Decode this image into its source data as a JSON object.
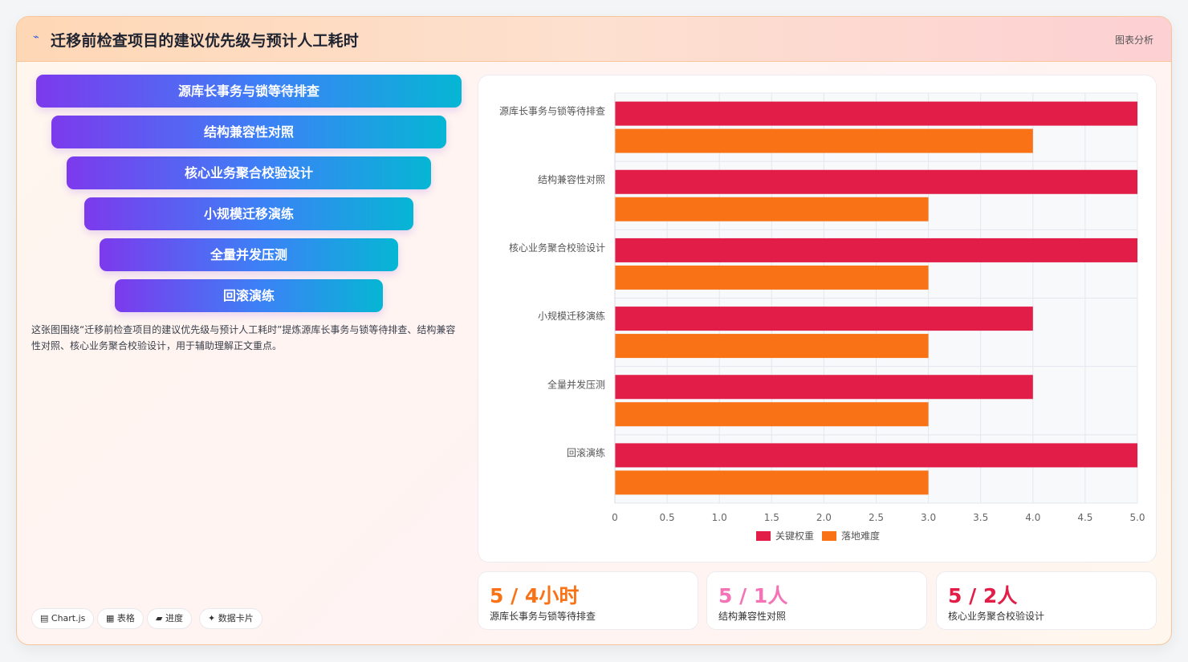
{
  "header": {
    "icon": "trend-icon",
    "title": "迁移前检查项目的建议优先级与预计人工耗时",
    "link": "图表分析"
  },
  "funnel": {
    "items": [
      "源库长事务与锁等待排查",
      "结构兼容性对照",
      "核心业务聚合校验设计",
      "小规模迁移演练",
      "全量并发压测",
      "回滚演练"
    ]
  },
  "description": "这张图围绕“迁移前检查项目的建议优先级与预计人工耗时”提炼源库长事务与锁等待排查、结构兼容性对照、核心业务聚合校验设计，用于辅助理解正文重点。",
  "tags": [
    "▤ Chart.js",
    "▦ 表格",
    "▰ 进度",
    "✦ 数据卡片"
  ],
  "chart_data": {
    "type": "bar",
    "orientation": "horizontal",
    "categories": [
      "源库长事务与锁等待排查",
      "结构兼容性对照",
      "核心业务聚合校验设计",
      "小规模迁移演练",
      "全量并发压测",
      "回滚演练"
    ],
    "series": [
      {
        "name": "关键权重",
        "color": "#e11d48",
        "values": [
          5,
          5,
          5,
          4,
          4,
          5
        ]
      },
      {
        "name": "落地难度",
        "color": "#f97316",
        "values": [
          4,
          3,
          3,
          3,
          3,
          3
        ]
      }
    ],
    "xlim": [
      0,
      5
    ],
    "xticks": [
      "0",
      "0.5",
      "1.0",
      "1.5",
      "2.0",
      "2.5",
      "3.0",
      "3.5",
      "4.0",
      "4.5",
      "5.0"
    ],
    "grid": true,
    "legend": "bottom"
  },
  "stats": [
    {
      "value": "5 / 4小时",
      "label": "源库长事务与锁等待排查",
      "color": "#f97316"
    },
    {
      "value": "5 / 1人",
      "label": "结构兼容性对照",
      "color": "#f472b6"
    },
    {
      "value": "5 / 2人",
      "label": "核心业务聚合校验设计",
      "color": "#e11d48"
    }
  ]
}
